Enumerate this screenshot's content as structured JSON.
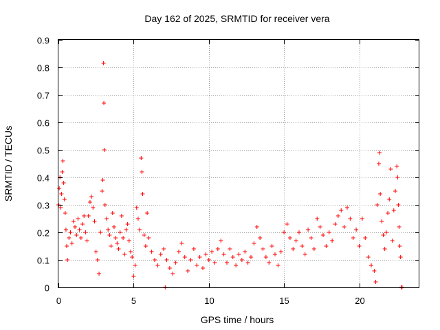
{
  "chart_data": {
    "type": "scatter",
    "title": "Day 162 of 2025, SRMTID for receiver vera",
    "xlabel": "GPS time / hours",
    "ylabel": "SRMTID / TECUs",
    "xlim": [
      0,
      24
    ],
    "ylim": [
      0,
      0.9
    ],
    "xticks": [
      0,
      5,
      10,
      15,
      20
    ],
    "yticks": [
      0,
      0.1,
      0.2,
      0.3,
      0.4,
      0.5,
      0.6,
      0.7,
      0.8,
      0.9
    ],
    "grid": true,
    "marker": "+",
    "color": "#ff0000",
    "series": [
      {
        "name": "SRMTID",
        "points": [
          [
            0.0,
            0.3
          ],
          [
            0.05,
            0.36
          ],
          [
            0.1,
            0.4
          ],
          [
            0.15,
            0.29
          ],
          [
            0.2,
            0.34
          ],
          [
            0.25,
            0.42
          ],
          [
            0.3,
            0.46
          ],
          [
            0.35,
            0.38
          ],
          [
            0.4,
            0.32
          ],
          [
            0.45,
            0.27
          ],
          [
            0.5,
            0.21
          ],
          [
            0.55,
            0.15
          ],
          [
            0.6,
            0.1
          ],
          [
            0.7,
            0.18
          ],
          [
            0.8,
            0.2
          ],
          [
            0.9,
            0.16
          ],
          [
            1.0,
            0.24
          ],
          [
            1.1,
            0.22
          ],
          [
            1.2,
            0.19
          ],
          [
            1.3,
            0.25
          ],
          [
            1.4,
            0.21
          ],
          [
            1.5,
            0.18
          ],
          [
            1.6,
            0.23
          ],
          [
            1.7,
            0.26
          ],
          [
            1.8,
            0.2
          ],
          [
            1.9,
            0.17
          ],
          [
            2.0,
            0.26
          ],
          [
            2.1,
            0.31
          ],
          [
            2.2,
            0.33
          ],
          [
            2.3,
            0.29
          ],
          [
            2.4,
            0.24
          ],
          [
            2.5,
            0.13
          ],
          [
            2.6,
            0.1
          ],
          [
            2.7,
            0.05
          ],
          [
            2.8,
            0.2
          ],
          [
            2.9,
            0.35
          ],
          [
            2.95,
            0.39
          ],
          [
            3.0,
            0.815
          ],
          [
            3.02,
            0.67
          ],
          [
            3.05,
            0.5
          ],
          [
            3.1,
            0.3
          ],
          [
            3.2,
            0.25
          ],
          [
            3.3,
            0.21
          ],
          [
            3.4,
            0.19
          ],
          [
            3.5,
            0.15
          ],
          [
            3.6,
            0.27
          ],
          [
            3.7,
            0.22
          ],
          [
            3.8,
            0.18
          ],
          [
            3.9,
            0.16
          ],
          [
            4.0,
            0.14
          ],
          [
            4.1,
            0.2
          ],
          [
            4.2,
            0.26
          ],
          [
            4.3,
            0.18
          ],
          [
            4.4,
            0.12
          ],
          [
            4.5,
            0.21
          ],
          [
            4.6,
            0.23
          ],
          [
            4.7,
            0.17
          ],
          [
            4.8,
            0.13
          ],
          [
            4.9,
            0.11
          ],
          [
            5.0,
            0.04
          ],
          [
            5.1,
            0.08
          ],
          [
            5.2,
            0.29
          ],
          [
            5.3,
            0.25
          ],
          [
            5.4,
            0.21
          ],
          [
            5.5,
            0.47
          ],
          [
            5.55,
            0.42
          ],
          [
            5.6,
            0.34
          ],
          [
            5.7,
            0.19
          ],
          [
            5.8,
            0.15
          ],
          [
            5.9,
            0.27
          ],
          [
            6.0,
            0.18
          ],
          [
            6.2,
            0.13
          ],
          [
            6.4,
            0.1
          ],
          [
            6.6,
            0.08
          ],
          [
            6.8,
            0.12
          ],
          [
            7.0,
            0.14
          ],
          [
            7.1,
            0.0
          ],
          [
            7.2,
            0.1
          ],
          [
            7.4,
            0.07
          ],
          [
            7.6,
            0.05
          ],
          [
            7.8,
            0.09
          ],
          [
            8.0,
            0.13
          ],
          [
            8.2,
            0.16
          ],
          [
            8.4,
            0.11
          ],
          [
            8.6,
            0.06
          ],
          [
            8.8,
            0.1
          ],
          [
            9.0,
            0.14
          ],
          [
            9.2,
            0.08
          ],
          [
            9.4,
            0.11
          ],
          [
            9.6,
            0.07
          ],
          [
            9.8,
            0.12
          ],
          [
            10.0,
            0.1
          ],
          [
            10.2,
            0.13
          ],
          [
            10.4,
            0.09
          ],
          [
            10.6,
            0.14
          ],
          [
            10.8,
            0.17
          ],
          [
            11.0,
            0.12
          ],
          [
            11.2,
            0.09
          ],
          [
            11.4,
            0.14
          ],
          [
            11.6,
            0.11
          ],
          [
            11.8,
            0.08
          ],
          [
            12.0,
            0.12
          ],
          [
            12.2,
            0.1
          ],
          [
            12.4,
            0.13
          ],
          [
            12.6,
            0.09
          ],
          [
            12.8,
            0.11
          ],
          [
            13.0,
            0.16
          ],
          [
            13.2,
            0.22
          ],
          [
            13.4,
            0.18
          ],
          [
            13.6,
            0.14
          ],
          [
            13.8,
            0.11
          ],
          [
            14.0,
            0.09
          ],
          [
            14.2,
            0.15
          ],
          [
            14.4,
            0.12
          ],
          [
            14.6,
            0.08
          ],
          [
            14.8,
            0.13
          ],
          [
            15.0,
            0.2
          ],
          [
            15.2,
            0.23
          ],
          [
            15.4,
            0.18
          ],
          [
            15.6,
            0.14
          ],
          [
            15.8,
            0.17
          ],
          [
            16.0,
            0.2
          ],
          [
            16.2,
            0.15
          ],
          [
            16.4,
            0.12
          ],
          [
            16.6,
            0.21
          ],
          [
            16.8,
            0.18
          ],
          [
            17.0,
            0.14
          ],
          [
            17.2,
            0.25
          ],
          [
            17.4,
            0.22
          ],
          [
            17.6,
            0.19
          ],
          [
            17.8,
            0.15
          ],
          [
            18.0,
            0.2
          ],
          [
            18.2,
            0.17
          ],
          [
            18.4,
            0.23
          ],
          [
            18.6,
            0.26
          ],
          [
            18.8,
            0.28
          ],
          [
            19.0,
            0.22
          ],
          [
            19.2,
            0.29
          ],
          [
            19.4,
            0.25
          ],
          [
            19.6,
            0.18
          ],
          [
            19.8,
            0.21
          ],
          [
            20.0,
            0.15
          ],
          [
            20.2,
            0.25
          ],
          [
            20.4,
            0.18
          ],
          [
            20.6,
            0.11
          ],
          [
            20.8,
            0.08
          ],
          [
            21.0,
            0.06
          ],
          [
            21.1,
            0.02
          ],
          [
            21.2,
            0.3
          ],
          [
            21.3,
            0.45
          ],
          [
            21.35,
            0.49
          ],
          [
            21.4,
            0.34
          ],
          [
            21.5,
            0.24
          ],
          [
            21.6,
            0.19
          ],
          [
            21.7,
            0.14
          ],
          [
            21.8,
            0.2
          ],
          [
            21.9,
            0.27
          ],
          [
            22.0,
            0.32
          ],
          [
            22.1,
            0.43
          ],
          [
            22.2,
            0.17
          ],
          [
            22.3,
            0.28
          ],
          [
            22.4,
            0.35
          ],
          [
            22.5,
            0.44
          ],
          [
            22.55,
            0.4
          ],
          [
            22.6,
            0.3
          ],
          [
            22.65,
            0.22
          ],
          [
            22.7,
            0.15
          ],
          [
            22.75,
            0.11
          ],
          [
            22.8,
            0.0
          ],
          [
            22.85,
            0.0
          ]
        ]
      }
    ]
  }
}
